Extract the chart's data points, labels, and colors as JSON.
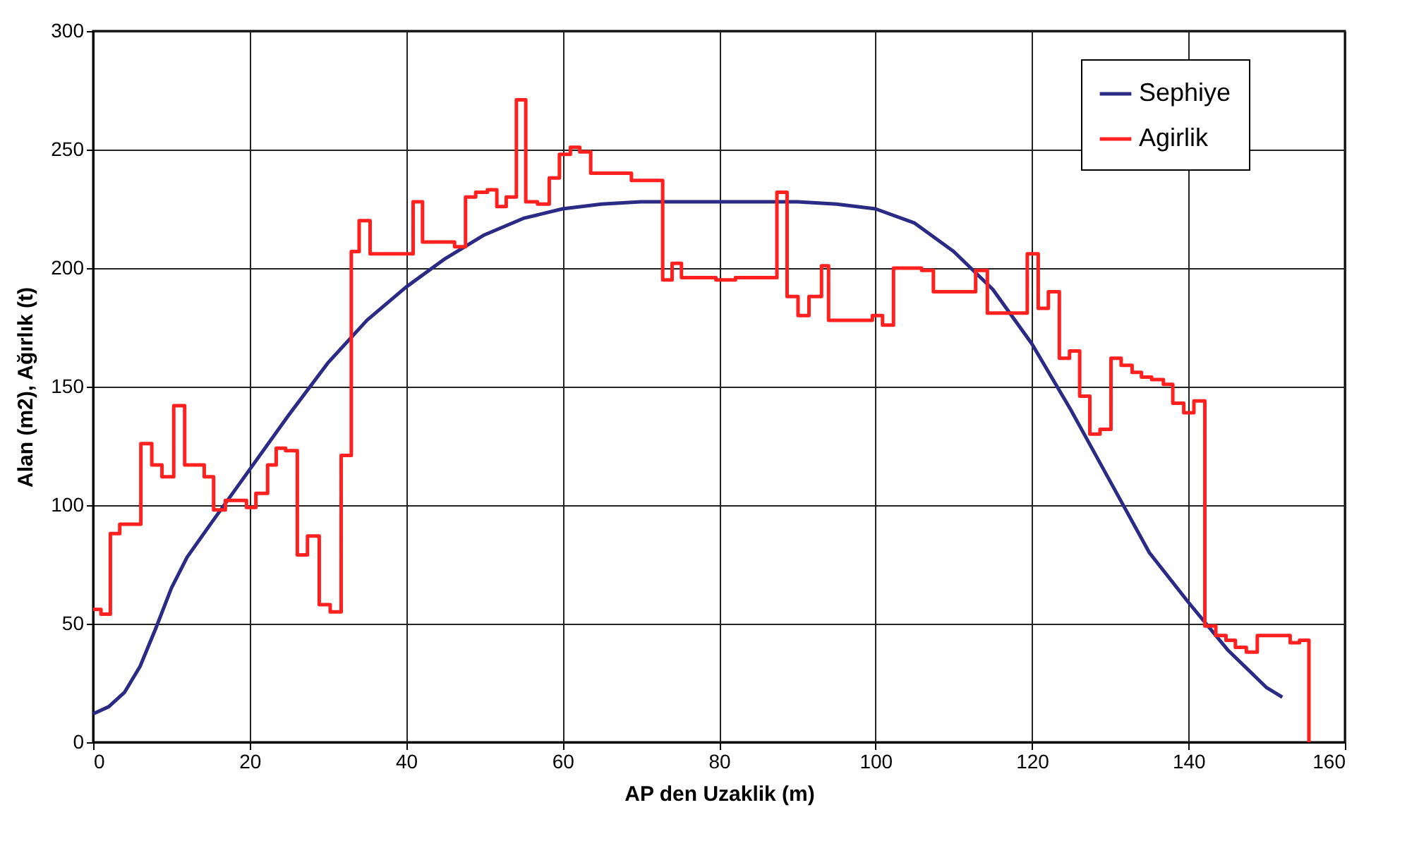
{
  "chart_data": {
    "type": "line",
    "xlabel": "AP den Uzaklik (m)",
    "ylabel": "Alan (m2), Ağırlık (t)",
    "xlim": [
      0,
      160
    ],
    "ylim": [
      0,
      300
    ],
    "xticks": [
      0,
      20,
      40,
      60,
      80,
      100,
      120,
      140,
      160
    ],
    "yticks": [
      0,
      50,
      100,
      150,
      200,
      250,
      300
    ],
    "grid": true,
    "legend": "top right",
    "marker": "none",
    "line_style": "solid",
    "series": [
      {
        "name": "Sephiye",
        "color": "#2b2b85",
        "x": [
          0,
          2,
          4,
          6,
          8,
          10,
          12,
          15,
          20,
          25,
          30,
          35,
          40,
          45,
          50,
          55,
          60,
          65,
          70,
          80,
          90,
          95,
          100,
          105,
          110,
          115,
          120,
          125,
          130,
          135,
          140,
          145,
          150,
          152
        ],
        "values": [
          12,
          15,
          21,
          32,
          48,
          65,
          78,
          92,
          115,
          138,
          160,
          178,
          192,
          204,
          214,
          221,
          225,
          227,
          228,
          228,
          228,
          227,
          225,
          219,
          207,
          191,
          168,
          140,
          110,
          80,
          59,
          39,
          23,
          19
        ]
      },
      {
        "name": "Agirlik",
        "color": "#ff2020",
        "type": "step",
        "x": [
          0,
          1,
          2.2,
          3.4,
          6.1,
          7.5,
          8.8,
          10.3,
          11.7,
          14.2,
          15.4,
          16.9,
          19.6,
          20.8,
          22.3,
          23.4,
          24.6,
          26.1,
          27.4,
          28.9,
          30.3,
          31.7,
          33,
          34,
          35.4,
          40.9,
          42.1,
          46.2,
          47.6,
          48.9,
          50.4,
          51.6,
          52.8,
          54.1,
          55.3,
          56.8,
          58.3,
          59.6,
          61,
          62.2,
          63.6,
          68.8,
          72.8,
          74,
          75.2,
          79.6,
          82.1,
          87.4,
          88.7,
          90.1,
          91.5,
          93.1,
          94,
          99.6,
          100.9,
          102.3,
          105.9,
          107.4,
          112.8,
          114.3,
          119.4,
          120.8,
          122.1,
          123.5,
          124.8,
          126.1,
          127.4,
          128.7,
          130.1,
          131.4,
          132.8,
          134,
          135.3,
          136.8,
          138,
          139.4,
          140.7,
          142.1,
          143.5,
          144.8,
          146,
          147.4,
          148.8,
          153,
          154.2,
          155.4
        ],
        "values": [
          56,
          54,
          88,
          92,
          126,
          117,
          112,
          142,
          117,
          112,
          98,
          102,
          99,
          105,
          117,
          124,
          123,
          79,
          87,
          58,
          55,
          121,
          207,
          220,
          206,
          228,
          211,
          209,
          230,
          232,
          233,
          226,
          230,
          271,
          228,
          227,
          238,
          248,
          251,
          249,
          240,
          237,
          195,
          202,
          196,
          195,
          196,
          232,
          188,
          180,
          188,
          201,
          178,
          180,
          176,
          200,
          199,
          190,
          199,
          181,
          206,
          183,
          190,
          162,
          165,
          146,
          130,
          132,
          162,
          159,
          156,
          154,
          153,
          151,
          143,
          139,
          144,
          49,
          45,
          43,
          40,
          38,
          45,
          42,
          43,
          0
        ]
      }
    ]
  }
}
